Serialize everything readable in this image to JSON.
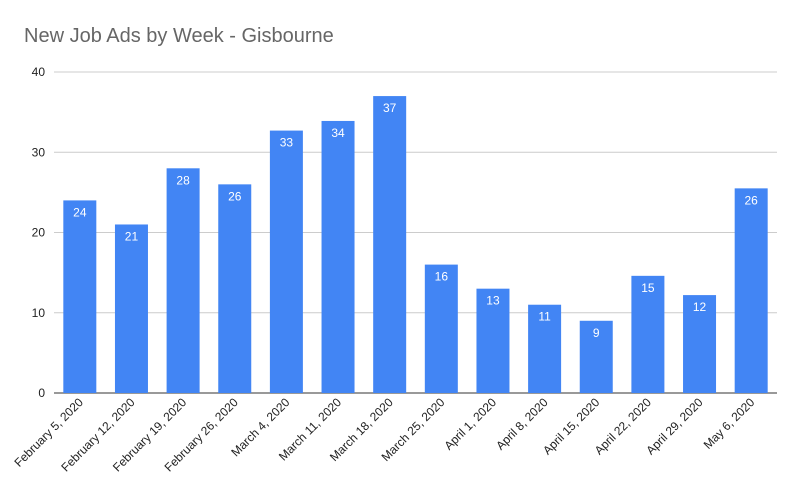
{
  "chart_data": {
    "type": "bar",
    "title": "New Job Ads by Week - Gisbourne",
    "xlabel": "",
    "ylabel": "",
    "ylim": [
      0,
      40
    ],
    "yticks": [
      0,
      10,
      20,
      30,
      40
    ],
    "grid": true,
    "legend": "none",
    "bar_color": "#4285f4",
    "categories": [
      "February 5, 2020",
      "February 12, 2020",
      "February 19, 2020",
      "February 26, 2020",
      "March 4, 2020",
      "March 11, 2020",
      "March 18, 2020",
      "March 25, 2020",
      "April 1, 2020",
      "April 8, 2020",
      "April 15, 2020",
      "April 22, 2020",
      "April 29, 2020",
      "May 6, 2020"
    ],
    "values": [
      24,
      21,
      28,
      26,
      32.7,
      33.9,
      37,
      16,
      13,
      11,
      9,
      14.6,
      12.2,
      25.5
    ],
    "data_labels": [
      "24",
      "21",
      "28",
      "26",
      "33",
      "34",
      "37",
      "16",
      "13",
      "11",
      "9",
      "15",
      "12",
      "26"
    ]
  }
}
